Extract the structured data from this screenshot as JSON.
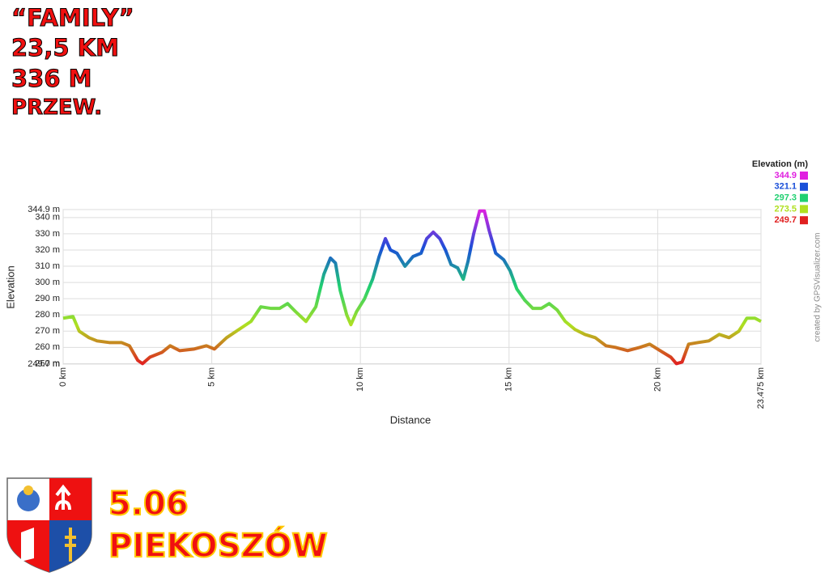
{
  "header": {
    "lines": [
      "“FAMILY”",
      "23,5 KM",
      "336 M",
      "PRZEW."
    ]
  },
  "footer": {
    "date": "5.06",
    "place": "PIEKOSZÓW"
  },
  "chart_data": {
    "type": "line",
    "x_label": "Distance",
    "y_label": "Elevation",
    "credit": "created by GPSVisualizer.com",
    "xlim": [
      0,
      23.475
    ],
    "ylim": [
      249.7,
      344.9
    ],
    "xticks": [
      {
        "value": 0,
        "label": "0 km"
      },
      {
        "value": 5,
        "label": "5 km"
      },
      {
        "value": 10,
        "label": "10 km"
      },
      {
        "value": 15,
        "label": "15 km"
      },
      {
        "value": 20,
        "label": "20 km"
      },
      {
        "value": 23.475,
        "label": "23.475 km"
      }
    ],
    "yticks": [
      {
        "value": 249.7,
        "label": "249.7 m"
      },
      {
        "value": 250,
        "label": "250 m"
      },
      {
        "value": 260,
        "label": "260 m"
      },
      {
        "value": 270,
        "label": "270 m"
      },
      {
        "value": 280,
        "label": "280 m"
      },
      {
        "value": 290,
        "label": "290 m"
      },
      {
        "value": 300,
        "label": "300 m"
      },
      {
        "value": 310,
        "label": "310 m"
      },
      {
        "value": 320,
        "label": "320 m"
      },
      {
        "value": 330,
        "label": "330 m"
      },
      {
        "value": 340,
        "label": "340 m"
      },
      {
        "value": 344.9,
        "label": "344.9 m"
      }
    ],
    "grid": true,
    "legend": {
      "title": "Elevation (m)",
      "entries": [
        {
          "value": 344.9,
          "color": "#e020e0"
        },
        {
          "value": 321.1,
          "color": "#1a4fd8"
        },
        {
          "value": 297.3,
          "color": "#20d070"
        },
        {
          "value": 273.5,
          "color": "#b0e020"
        },
        {
          "value": 249.7,
          "color": "#e02020"
        }
      ]
    },
    "x": [
      0,
      0.33,
      0.54,
      0.87,
      1.14,
      1.55,
      1.96,
      2.23,
      2.51,
      2.67,
      2.92,
      3.33,
      3.6,
      3.92,
      4.41,
      4.82,
      5.09,
      5.5,
      5.91,
      6.32,
      6.65,
      7.0,
      7.28,
      7.55,
      7.82,
      8.17,
      8.5,
      8.77,
      8.99,
      9.16,
      9.32,
      9.54,
      9.68,
      9.87,
      10.14,
      10.41,
      10.63,
      10.84,
      11.01,
      11.23,
      11.5,
      11.77,
      12.04,
      12.23,
      12.45,
      12.67,
      12.86,
      13.05,
      13.27,
      13.46,
      13.62,
      13.81,
      14.01,
      14.17,
      14.33,
      14.55,
      14.82,
      15.04,
      15.26,
      15.53,
      15.8,
      16.08,
      16.35,
      16.62,
      16.89,
      17.22,
      17.55,
      17.9,
      18.26,
      18.58,
      18.99,
      19.4,
      19.73,
      20.08,
      20.44,
      20.63,
      20.82,
      21.04,
      21.36,
      21.72,
      22.07,
      22.4,
      22.73,
      23.0,
      23.27,
      23.475
    ],
    "values": [
      278,
      279,
      270,
      266,
      264,
      263,
      263,
      261,
      252,
      250,
      254,
      257,
      261,
      258,
      259,
      261,
      259,
      266,
      271,
      276,
      285,
      284,
      284,
      287,
      282,
      276,
      285,
      305,
      315,
      312,
      295,
      280,
      274,
      282,
      290,
      302,
      316,
      327,
      320,
      318,
      310,
      316,
      318,
      327,
      331,
      327,
      320,
      311,
      309,
      302,
      313,
      330,
      344,
      344,
      332,
      318,
      314,
      307,
      296,
      289,
      284,
      284,
      287,
      283,
      276,
      271,
      268,
      266,
      261,
      260,
      258,
      260,
      262,
      258,
      254,
      250,
      251,
      262,
      263,
      264,
      268,
      266,
      270,
      278,
      278,
      276
    ]
  }
}
